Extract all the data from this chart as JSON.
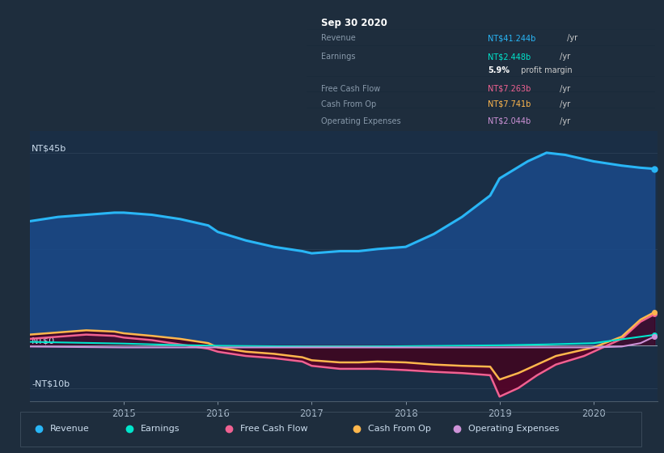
{
  "bg_color": "#1e2d3d",
  "plot_bg_color": "#1a2e45",
  "x_ticks": [
    2015,
    2016,
    2017,
    2018,
    2019,
    2020
  ],
  "tooltip_title": "Sep 30 2020",
  "tooltip_rows": [
    {
      "label": "Revenue",
      "value_color": "NT$41.244b",
      "value_plain": " /yr",
      "color": "#29b6f6",
      "sep_after": true
    },
    {
      "label": "Earnings",
      "value_color": "NT$2.448b",
      "value_plain": " /yr",
      "color": "#00e5cc",
      "sep_after": false
    },
    {
      "label": "",
      "value_color": "5.9%",
      "value_plain": " profit margin",
      "color": "#ffffff",
      "bold": true,
      "sep_after": true
    },
    {
      "label": "Free Cash Flow",
      "value_color": "NT$7.263b",
      "value_plain": " /yr",
      "color": "#f06292",
      "sep_after": true
    },
    {
      "label": "Cash From Op",
      "value_color": "NT$7.741b",
      "value_plain": " /yr",
      "color": "#ffb74d",
      "sep_after": true
    },
    {
      "label": "Operating Expenses",
      "value_color": "NT$2.044b",
      "value_plain": " /yr",
      "color": "#ce93d8",
      "sep_after": false
    }
  ],
  "legend": [
    {
      "label": "Revenue",
      "color": "#29b6f6"
    },
    {
      "label": "Earnings",
      "color": "#00e5cc"
    },
    {
      "label": "Free Cash Flow",
      "color": "#f06292"
    },
    {
      "label": "Cash From Op",
      "color": "#ffb74d"
    },
    {
      "label": "Operating Expenses",
      "color": "#ce93d8"
    }
  ],
  "revenue_x": [
    2014.0,
    2014.3,
    2014.6,
    2014.9,
    2015.0,
    2015.3,
    2015.6,
    2015.9,
    2016.0,
    2016.3,
    2016.6,
    2016.9,
    2017.0,
    2017.3,
    2017.5,
    2017.7,
    2018.0,
    2018.3,
    2018.6,
    2018.9,
    2019.0,
    2019.3,
    2019.5,
    2019.7,
    2020.0,
    2020.3,
    2020.5,
    2020.65
  ],
  "revenue_y": [
    29,
    30,
    30.5,
    31,
    31,
    30.5,
    29.5,
    28,
    26.5,
    24.5,
    23,
    22,
    21.5,
    22,
    22,
    22.5,
    23,
    26,
    30,
    35,
    39,
    43,
    45,
    44.5,
    43,
    42,
    41.5,
    41.244
  ],
  "earnings_x": [
    2014.0,
    2014.5,
    2015.0,
    2015.5,
    2016.0,
    2016.5,
    2017.0,
    2017.5,
    2018.0,
    2018.5,
    2019.0,
    2019.5,
    2020.0,
    2020.5,
    2020.65
  ],
  "earnings_y": [
    0.8,
    0.6,
    0.4,
    0.1,
    -0.1,
    -0.2,
    -0.3,
    -0.3,
    -0.2,
    -0.1,
    0.0,
    0.2,
    0.5,
    2.0,
    2.448
  ],
  "fcf_x": [
    2014.0,
    2014.3,
    2014.6,
    2014.9,
    2015.0,
    2015.3,
    2015.6,
    2015.9,
    2016.0,
    2016.3,
    2016.6,
    2016.9,
    2017.0,
    2017.3,
    2017.5,
    2017.7,
    2018.0,
    2018.3,
    2018.6,
    2018.9,
    2019.0,
    2019.2,
    2019.4,
    2019.6,
    2019.9,
    2020.0,
    2020.3,
    2020.5,
    2020.65
  ],
  "fcf_y": [
    1.5,
    2.0,
    2.5,
    2.2,
    1.8,
    1.2,
    0.2,
    -0.8,
    -1.5,
    -2.5,
    -3.0,
    -3.8,
    -4.8,
    -5.5,
    -5.5,
    -5.5,
    -5.8,
    -6.2,
    -6.5,
    -7.0,
    -12.0,
    -10.0,
    -7.0,
    -4.5,
    -2.5,
    -1.5,
    1.5,
    5.5,
    7.263
  ],
  "cashfromop_x": [
    2014.0,
    2014.3,
    2014.6,
    2014.9,
    2015.0,
    2015.3,
    2015.6,
    2015.9,
    2016.0,
    2016.3,
    2016.6,
    2016.9,
    2017.0,
    2017.3,
    2017.5,
    2017.7,
    2018.0,
    2018.3,
    2018.6,
    2018.9,
    2019.0,
    2019.2,
    2019.4,
    2019.6,
    2019.9,
    2020.0,
    2020.3,
    2020.5,
    2020.65
  ],
  "cashfromop_y": [
    2.5,
    3.0,
    3.5,
    3.2,
    2.8,
    2.2,
    1.5,
    0.5,
    -0.5,
    -1.5,
    -2.0,
    -2.8,
    -3.5,
    -4.0,
    -4.0,
    -3.8,
    -4.0,
    -4.5,
    -4.8,
    -5.0,
    -8.0,
    -6.5,
    -4.5,
    -2.5,
    -1.0,
    -0.5,
    2.0,
    6.0,
    7.741
  ],
  "opex_x": [
    2014.0,
    2014.5,
    2015.0,
    2015.5,
    2016.0,
    2016.5,
    2017.0,
    2017.5,
    2018.0,
    2018.5,
    2019.0,
    2019.5,
    2020.0,
    2020.3,
    2020.5,
    2020.65
  ],
  "opex_y": [
    -0.3,
    -0.4,
    -0.5,
    -0.5,
    -0.5,
    -0.5,
    -0.5,
    -0.5,
    -0.5,
    -0.5,
    -0.5,
    -0.5,
    -0.5,
    -0.3,
    0.5,
    2.044
  ]
}
